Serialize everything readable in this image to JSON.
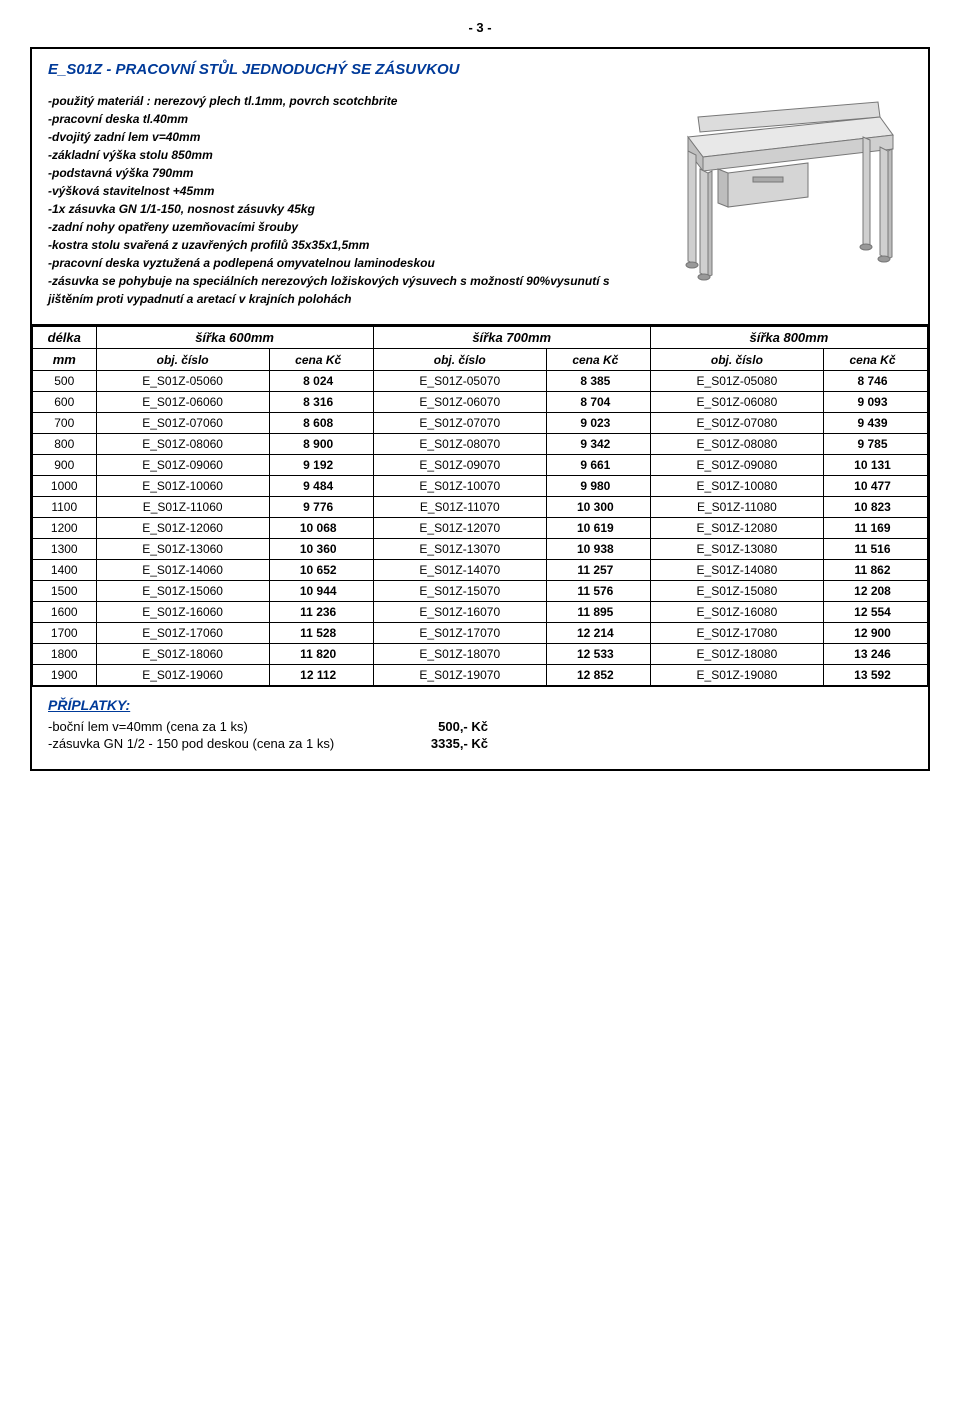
{
  "page_number": "- 3 -",
  "product_title": "E_S01Z - PRACOVNÍ STŮL JEDNODUCHÝ SE ZÁSUVKOU",
  "specs": [
    "-použitý materiál : nerezový plech tl.1mm, povrch scotchbrite",
    "-pracovní deska tl.40mm",
    "-dvojitý zadní lem v=40mm",
    "-základní výška stolu 850mm",
    "-podstavná výška 790mm",
    "-výšková stavitelnost +45mm",
    "-1x zásuvka GN 1/1-150, nosnost zásuvky 45kg",
    "-zadní nohy opatřeny uzemňovacími šrouby",
    "-kostra stolu svařená z uzavřených profilů 35x35x1,5mm",
    "-pracovní deska vyztužená a podlepená omyvatelnou laminodeskou",
    "-zásuvka se pohybuje na speciálních nerezových ložiskových výsuvech s možností 90%vysunutí s jištěním proti vypadnutí a aretací v krajních polohách"
  ],
  "table": {
    "len_header_top": "délka",
    "len_header_bot": "mm",
    "group_headers": [
      "šířka 600mm",
      "šířka 700mm",
      "šířka 800mm"
    ],
    "sub_obj": "obj. číslo",
    "sub_price": "cena Kč",
    "rows": [
      {
        "len": "500",
        "c1": "E_S01Z-05060",
        "p1": "8 024",
        "c2": "E_S01Z-05070",
        "p2": "8 385",
        "c3": "E_S01Z-05080",
        "p3": "8 746"
      },
      {
        "len": "600",
        "c1": "E_S01Z-06060",
        "p1": "8 316",
        "c2": "E_S01Z-06070",
        "p2": "8 704",
        "c3": "E_S01Z-06080",
        "p3": "9 093"
      },
      {
        "len": "700",
        "c1": "E_S01Z-07060",
        "p1": "8 608",
        "c2": "E_S01Z-07070",
        "p2": "9 023",
        "c3": "E_S01Z-07080",
        "p3": "9 439"
      },
      {
        "len": "800",
        "c1": "E_S01Z-08060",
        "p1": "8 900",
        "c2": "E_S01Z-08070",
        "p2": "9 342",
        "c3": "E_S01Z-08080",
        "p3": "9 785"
      },
      {
        "len": "900",
        "c1": "E_S01Z-09060",
        "p1": "9 192",
        "c2": "E_S01Z-09070",
        "p2": "9 661",
        "c3": "E_S01Z-09080",
        "p3": "10 131"
      },
      {
        "len": "1000",
        "c1": "E_S01Z-10060",
        "p1": "9 484",
        "c2": "E_S01Z-10070",
        "p2": "9 980",
        "c3": "E_S01Z-10080",
        "p3": "10 477"
      },
      {
        "len": "1100",
        "c1": "E_S01Z-11060",
        "p1": "9 776",
        "c2": "E_S01Z-11070",
        "p2": "10 300",
        "c3": "E_S01Z-11080",
        "p3": "10 823"
      },
      {
        "len": "1200",
        "c1": "E_S01Z-12060",
        "p1": "10 068",
        "c2": "E_S01Z-12070",
        "p2": "10 619",
        "c3": "E_S01Z-12080",
        "p3": "11 169"
      },
      {
        "len": "1300",
        "c1": "E_S01Z-13060",
        "p1": "10 360",
        "c2": "E_S01Z-13070",
        "p2": "10 938",
        "c3": "E_S01Z-13080",
        "p3": "11 516"
      },
      {
        "len": "1400",
        "c1": "E_S01Z-14060",
        "p1": "10 652",
        "c2": "E_S01Z-14070",
        "p2": "11 257",
        "c3": "E_S01Z-14080",
        "p3": "11 862"
      },
      {
        "len": "1500",
        "c1": "E_S01Z-15060",
        "p1": "10 944",
        "c2": "E_S01Z-15070",
        "p2": "11 576",
        "c3": "E_S01Z-15080",
        "p3": "12 208"
      },
      {
        "len": "1600",
        "c1": "E_S01Z-16060",
        "p1": "11 236",
        "c2": "E_S01Z-16070",
        "p2": "11 895",
        "c3": "E_S01Z-16080",
        "p3": "12 554"
      },
      {
        "len": "1700",
        "c1": "E_S01Z-17060",
        "p1": "11 528",
        "c2": "E_S01Z-17070",
        "p2": "12 214",
        "c3": "E_S01Z-17080",
        "p3": "12 900"
      },
      {
        "len": "1800",
        "c1": "E_S01Z-18060",
        "p1": "11 820",
        "c2": "E_S01Z-18070",
        "p2": "12 533",
        "c3": "E_S01Z-18080",
        "p3": "13 246"
      },
      {
        "len": "1900",
        "c1": "E_S01Z-19060",
        "p1": "12 112",
        "c2": "E_S01Z-19070",
        "p2": "12 852",
        "c3": "E_S01Z-19080",
        "p3": "13 592"
      }
    ]
  },
  "footer": {
    "title": "PŘÍPLATKY:",
    "lines": [
      {
        "label": "-boční lem v=40mm (cena za 1 ks)",
        "price": "500,- Kč"
      },
      {
        "label": "-zásuvka GN 1/2 - 150 pod deskou (cena za 1 ks)",
        "price": "3335,- Kč"
      }
    ]
  },
  "svg": {
    "table_fill": "#e8e8e8",
    "table_stroke": "#888",
    "drawer_fill": "#d5d5d5",
    "leg_fill": "#cfcfcf"
  }
}
